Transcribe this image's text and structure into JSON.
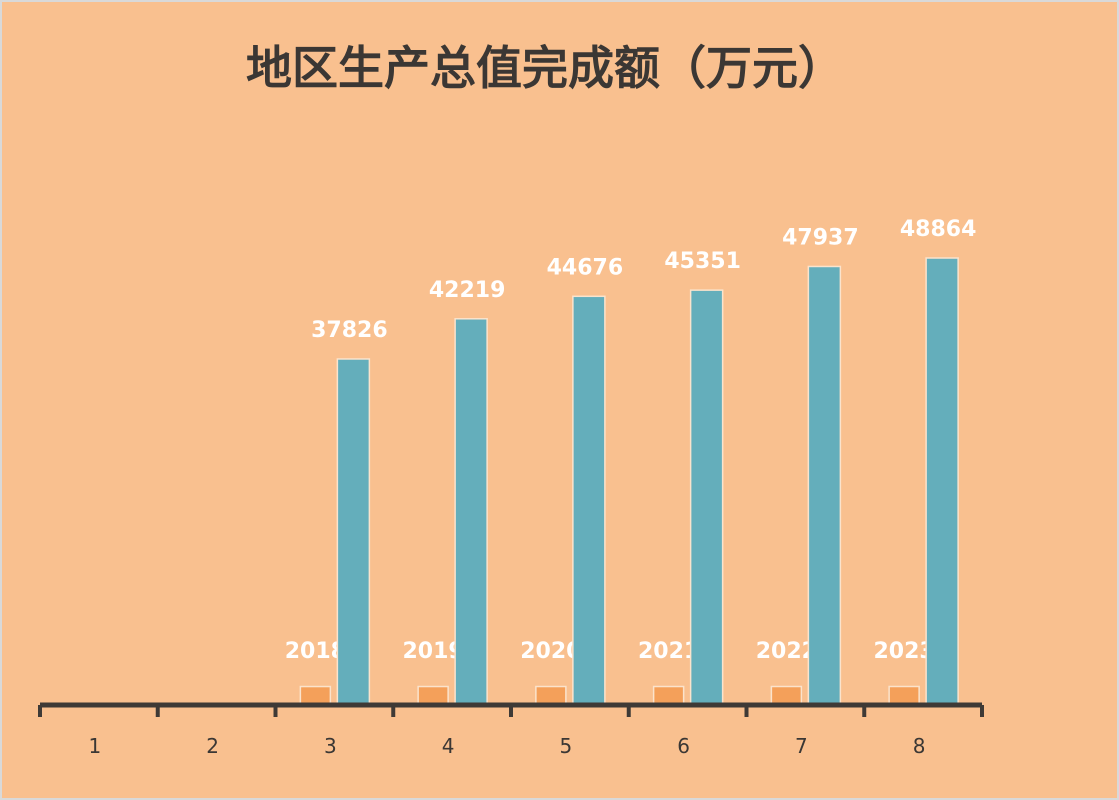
{
  "chart_data": {
    "type": "bar",
    "title": "地区生产总值完成额（万元）",
    "categories": [
      "1",
      "2",
      "3",
      "4",
      "5",
      "6",
      "7",
      "8"
    ],
    "series": [
      {
        "values": [
          null,
          null,
          2018,
          2019,
          2020,
          2021,
          2022,
          2023
        ],
        "color": "#F4A05A"
      },
      {
        "values": [
          null,
          null,
          37826,
          42219,
          44676,
          45351,
          47937,
          48864
        ],
        "color": "#64AEBB"
      }
    ],
    "data_labels": true,
    "grid": false,
    "legend": "none",
    "background": "#F9C08F",
    "axis_color": "#3F3A36"
  }
}
